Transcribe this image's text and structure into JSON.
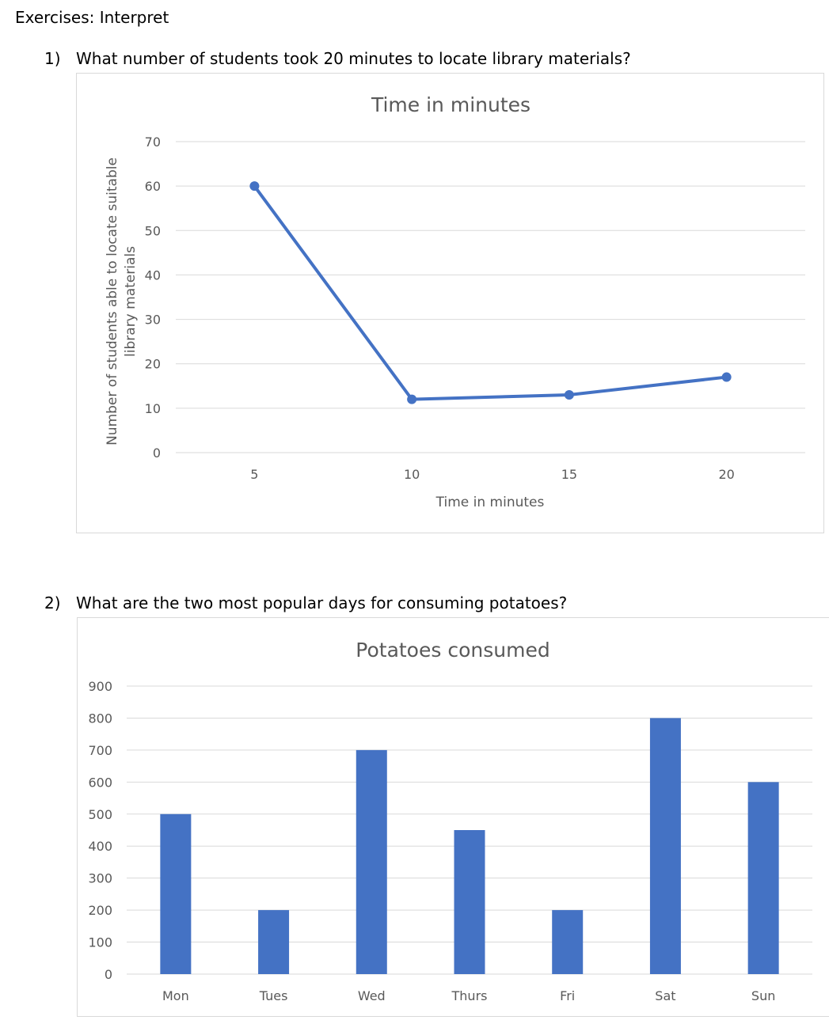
{
  "heading": "Exercises: Interpret",
  "questions": [
    {
      "number": "1)",
      "text": "What number of students took 20 minutes to locate library materials?"
    },
    {
      "number": "2)",
      "text": "What are the two most popular days for consuming potatoes?"
    }
  ],
  "colors": {
    "series": "#4472c4",
    "grid": "#d9d9d9",
    "text": "#595959"
  },
  "chart_data": [
    {
      "type": "line",
      "title": "Time in minutes",
      "xlabel": "Time in minutes",
      "ylabel_lines": [
        "Number of students able to locate suitable",
        "library materials"
      ],
      "categories": [
        "5",
        "10",
        "15",
        "20"
      ],
      "series": [
        {
          "name": "Number of students",
          "values": [
            60,
            12,
            13,
            17
          ]
        }
      ],
      "ylim": [
        0,
        70
      ],
      "yticks": [
        0,
        10,
        20,
        30,
        40,
        50,
        60,
        70
      ],
      "grid": true
    },
    {
      "type": "bar",
      "title": "Potatoes consumed",
      "xlabel": "",
      "ylabel": "",
      "categories": [
        "Mon",
        "Tues",
        "Wed",
        "Thurs",
        "Fri",
        "Sat",
        "Sun"
      ],
      "series": [
        {
          "name": "Potatoes consumed",
          "values": [
            500,
            200,
            700,
            450,
            200,
            800,
            600
          ]
        }
      ],
      "ylim": [
        0,
        900
      ],
      "yticks": [
        0,
        100,
        200,
        300,
        400,
        500,
        600,
        700,
        800,
        900
      ],
      "grid": true
    }
  ]
}
